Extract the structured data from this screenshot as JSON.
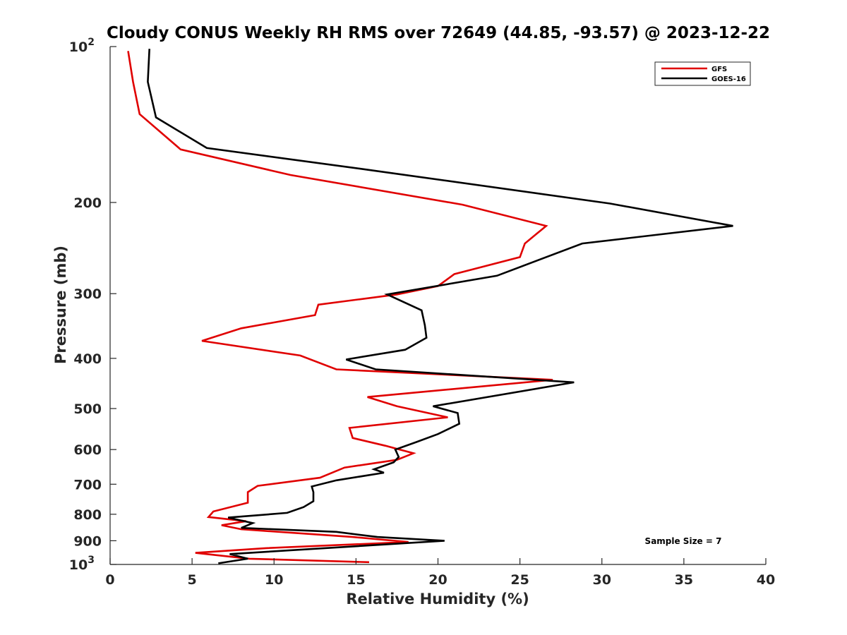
{
  "chart_data": {
    "type": "line",
    "title": "Cloudy CONUS Weekly RH RMS over 72649 (44.85, -93.57) @ 2023-12-22",
    "xlabel": "Relative Humidity (%)",
    "ylabel": "Pressure (mb)",
    "xlim": [
      0,
      40
    ],
    "ylim": [
      100,
      1000
    ],
    "y_scale": "log",
    "y_reversed": true,
    "grid": false,
    "legend_position": "top-right",
    "x_ticks": [
      "0",
      "5",
      "10",
      "15",
      "20",
      "25",
      "30",
      "35",
      "40"
    ],
    "y_ticks": [
      {
        "value": 100,
        "base": "10",
        "exp": "2"
      },
      {
        "value": 200,
        "label": "200"
      },
      {
        "value": 300,
        "label": "300"
      },
      {
        "value": 400,
        "label": "400"
      },
      {
        "value": 500,
        "label": "500"
      },
      {
        "value": 600,
        "label": "600"
      },
      {
        "value": 700,
        "label": "700"
      },
      {
        "value": 800,
        "label": "800"
      },
      {
        "value": 900,
        "label": "900"
      },
      {
        "value": 1000,
        "base": "10",
        "exp": "3"
      }
    ],
    "annotation": "Sample Size = 7",
    "series": [
      {
        "name": "GFS",
        "color": "#e00000",
        "points": [
          [
            15.8,
            990
          ],
          [
            8.5,
            975
          ],
          [
            5.2,
            950
          ],
          [
            9.5,
            930
          ],
          [
            18.2,
            905
          ],
          [
            14.8,
            885
          ],
          [
            8.0,
            855
          ],
          [
            6.8,
            840
          ],
          [
            8.3,
            825
          ],
          [
            6.0,
            810
          ],
          [
            6.3,
            790
          ],
          [
            8.4,
            760
          ],
          [
            8.4,
            725
          ],
          [
            9.0,
            705
          ],
          [
            12.8,
            680
          ],
          [
            14.3,
            650
          ],
          [
            17.5,
            628
          ],
          [
            18.5,
            610
          ],
          [
            16.8,
            590
          ],
          [
            14.8,
            570
          ],
          [
            14.6,
            545
          ],
          [
            20.6,
            520
          ],
          [
            17.5,
            495
          ],
          [
            15.7,
            475
          ],
          [
            27.0,
            440
          ],
          [
            13.8,
            420
          ],
          [
            11.6,
            395
          ],
          [
            5.6,
            370
          ],
          [
            8.0,
            350
          ],
          [
            12.5,
            330
          ],
          [
            12.7,
            315
          ],
          [
            17.5,
            301
          ],
          [
            20.0,
            290
          ],
          [
            21.0,
            275
          ],
          [
            25.0,
            255
          ],
          [
            25.3,
            240
          ],
          [
            26.6,
            222
          ],
          [
            21.5,
            202
          ],
          [
            11.0,
            177
          ],
          [
            4.3,
            158
          ],
          [
            1.8,
            135
          ],
          [
            1.4,
            117
          ],
          [
            1.1,
            102
          ]
        ]
      },
      {
        "name": "GOES-16",
        "color": "#000000",
        "points": [
          [
            6.6,
            995
          ],
          [
            8.4,
            975
          ],
          [
            7.3,
            955
          ],
          [
            20.4,
            900
          ],
          [
            16.3,
            885
          ],
          [
            13.8,
            865
          ],
          [
            8.0,
            850
          ],
          [
            8.7,
            832
          ],
          [
            7.2,
            812
          ],
          [
            10.8,
            795
          ],
          [
            11.8,
            775
          ],
          [
            12.4,
            755
          ],
          [
            12.4,
            725
          ],
          [
            12.3,
            707
          ],
          [
            13.8,
            688
          ],
          [
            16.7,
            665
          ],
          [
            16.1,
            655
          ],
          [
            17.3,
            635
          ],
          [
            17.6,
            620
          ],
          [
            17.4,
            600
          ],
          [
            18.7,
            580
          ],
          [
            20.0,
            560
          ],
          [
            21.3,
            535
          ],
          [
            21.2,
            510
          ],
          [
            19.7,
            495
          ],
          [
            28.3,
            445
          ],
          [
            16.2,
            420
          ],
          [
            14.4,
            402
          ],
          [
            18.0,
            385
          ],
          [
            19.3,
            365
          ],
          [
            19.2,
            345
          ],
          [
            19.0,
            323
          ],
          [
            16.9,
            301
          ],
          [
            23.6,
            277
          ],
          [
            28.8,
            240
          ],
          [
            38.0,
            222
          ],
          [
            30.5,
            201
          ],
          [
            15.2,
            172
          ],
          [
            5.9,
            157
          ],
          [
            2.8,
            137
          ],
          [
            2.3,
            117
          ],
          [
            2.4,
            101
          ]
        ]
      }
    ]
  }
}
